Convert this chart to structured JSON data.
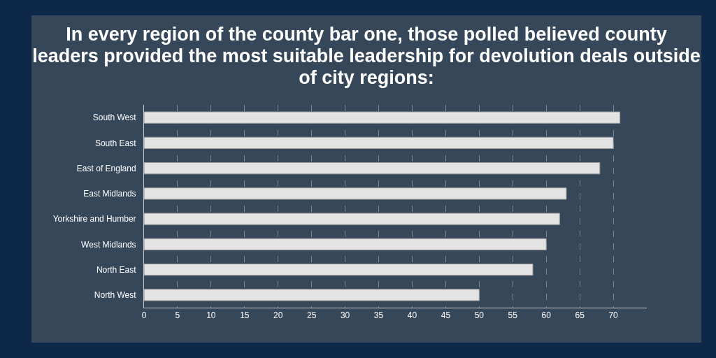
{
  "chart_data": {
    "type": "bar",
    "orientation": "horizontal",
    "title": "In every region of the county bar one, those polled believed county leaders provided the most suitable leadership for devolution deals outside of city regions:",
    "categories": [
      "South West",
      "South East",
      "East of England",
      "East Midlands",
      "Yorkshire and Humber",
      "West Midlands",
      "North East",
      "North West"
    ],
    "values": [
      71,
      70,
      68,
      63,
      62,
      60,
      58,
      50
    ],
    "color": "#e3e3e3",
    "xlim": [
      0,
      75
    ],
    "xticks": [
      0,
      5,
      10,
      15,
      20,
      25,
      30,
      35,
      40,
      45,
      50,
      55,
      60,
      65,
      70
    ],
    "grid": "x"
  }
}
